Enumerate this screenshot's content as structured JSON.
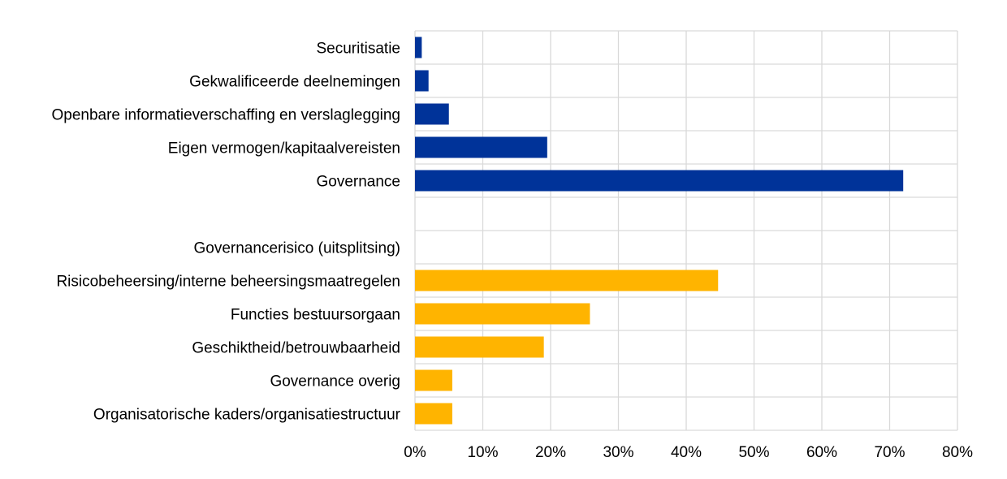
{
  "chart_data": {
    "type": "bar",
    "orientation": "horizontal",
    "title": "",
    "xlabel": "",
    "ylabel": "",
    "xlim": [
      0,
      80
    ],
    "x_ticks": [
      "0%",
      "10%",
      "20%",
      "30%",
      "40%",
      "50%",
      "60%",
      "70%",
      "80%"
    ],
    "grid": true,
    "colors": {
      "primary": "#003399",
      "breakdown": "#ffb400",
      "grid": "#d9d9d9"
    },
    "categories": [
      {
        "label": "Securitisatie",
        "value": 1,
        "group": "primary"
      },
      {
        "label": "Gekwalificeerde deelnemingen",
        "value": 2,
        "group": "primary"
      },
      {
        "label": "Openbare informatieverschaffing en verslaglegging",
        "value": 5,
        "group": "primary"
      },
      {
        "label": "Eigen vermogen/kapitaalvereisten",
        "value": 19.5,
        "group": "primary"
      },
      {
        "label": "Governance",
        "value": 72,
        "group": "primary"
      },
      {
        "label": "",
        "value": null,
        "group": "spacer"
      },
      {
        "label": "Governancerisico (uitsplitsing)",
        "value": null,
        "group": "header"
      },
      {
        "label": "Risicobeheersing/interne beheersingsmaatregelen",
        "value": 44.7,
        "group": "breakdown"
      },
      {
        "label": "Functies bestuursorgaan",
        "value": 25.8,
        "group": "breakdown"
      },
      {
        "label": "Geschiktheid/betrouwbaarheid",
        "value": 19,
        "group": "breakdown"
      },
      {
        "label": "Governance overig",
        "value": 5.5,
        "group": "breakdown"
      },
      {
        "label": "Organisatorische kaders/organisatiestructuur",
        "value": 5.5,
        "group": "breakdown"
      }
    ]
  }
}
